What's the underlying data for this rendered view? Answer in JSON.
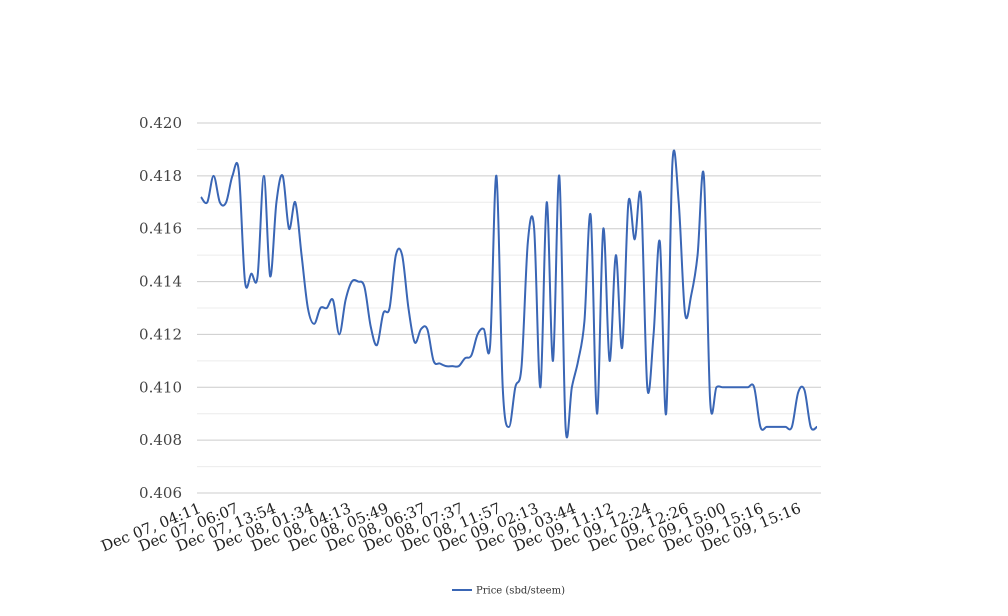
{
  "chart_data": {
    "type": "line",
    "title": "",
    "xlabel": "",
    "ylabel": "",
    "ylim": [
      0.406,
      0.42
    ],
    "yticks": [
      "0.420",
      "0.418",
      "0.416",
      "0.414",
      "0.412",
      "0.410",
      "0.408",
      "0.406"
    ],
    "ytick_values": [
      0.42,
      0.418,
      0.416,
      0.414,
      0.412,
      0.41,
      0.408,
      0.406
    ],
    "xticks": [
      "Dec 07, 04:11",
      "Dec 07, 06:07",
      "Dec 07, 13:54",
      "Dec 08, 01:34",
      "Dec 08, 04:13",
      "Dec 08, 05:49",
      "Dec 08, 06:37",
      "Dec 08, 07:37",
      "Dec 08, 11:57",
      "Dec 09, 02:13",
      "Dec 09, 03:44",
      "Dec 09, 11:12",
      "Dec 09, 12:24",
      "Dec 09, 12:26",
      "Dec 09, 15:00",
      "Dec 09, 15:16",
      "Dec 09, 15:16"
    ],
    "grid": true,
    "legend_position": "bottom",
    "series": [
      {
        "name": "Price (sbd/steem)",
        "color": "#3a66b5",
        "values": [
          0.4172,
          0.417,
          0.418,
          0.417,
          0.417,
          0.418,
          0.4182,
          0.414,
          0.4143,
          0.4142,
          0.418,
          0.4142,
          0.417,
          0.418,
          0.416,
          0.417,
          0.415,
          0.413,
          0.4124,
          0.413,
          0.413,
          0.4133,
          0.412,
          0.4133,
          0.414,
          0.414,
          0.4138,
          0.4123,
          0.4116,
          0.4128,
          0.413,
          0.415,
          0.415,
          0.413,
          0.4117,
          0.4122,
          0.4122,
          0.411,
          0.4109,
          0.4108,
          0.4108,
          0.4108,
          0.4111,
          0.4112,
          0.412,
          0.4122,
          0.4116,
          0.418,
          0.41,
          0.4085,
          0.41,
          0.4108,
          0.4155,
          0.416,
          0.41,
          0.417,
          0.411,
          0.418,
          0.4085,
          0.41,
          0.411,
          0.4125,
          0.4165,
          0.409,
          0.416,
          0.411,
          0.415,
          0.4115,
          0.417,
          0.4156,
          0.4172,
          0.41,
          0.412,
          0.4155,
          0.409,
          0.4185,
          0.417,
          0.4128,
          0.4135,
          0.415,
          0.418,
          0.4095,
          0.41,
          0.41,
          0.41,
          0.41,
          0.41,
          0.41,
          0.41,
          0.4085,
          0.4085,
          0.4085,
          0.4085,
          0.4085,
          0.4085,
          0.4098,
          0.4099,
          0.4085,
          0.4085
        ]
      }
    ]
  }
}
